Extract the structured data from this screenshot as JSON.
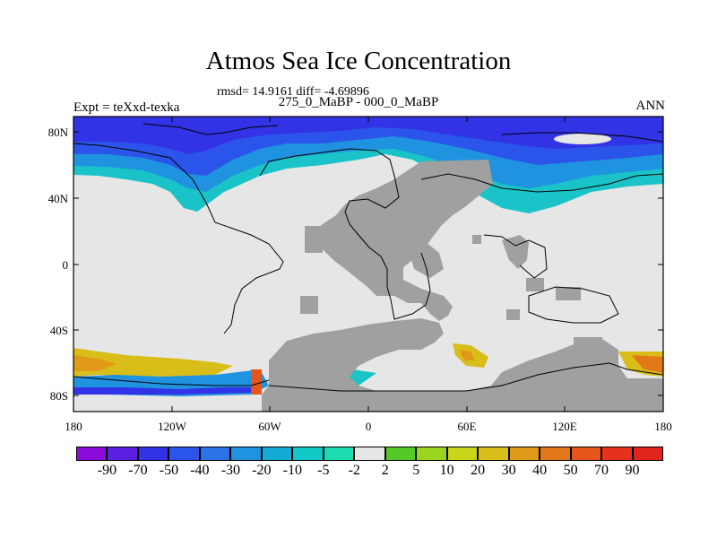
{
  "title": "Atmos Sea Ice Concentration",
  "stats": "rmsd= 14.9161 diff= -4.69896",
  "subtitle": "275_0_MaBP - 000_0_MaBP",
  "left_label": "Expt = teXxd-texka",
  "right_label": "ANN",
  "lat_ticks": [
    "80N",
    "40N",
    "0",
    "40S",
    "80S"
  ],
  "lon_ticks": [
    "180",
    "120W",
    "60W",
    "0",
    "60E",
    "120E",
    "180"
  ],
  "colorbar": {
    "labels": [
      "-90",
      "-70",
      "-50",
      "-40",
      "-30",
      "-20",
      "-10",
      "-5",
      "-2",
      "2",
      "5",
      "10",
      "20",
      "30",
      "40",
      "50",
      "70",
      "90"
    ],
    "colors": [
      "#8c0bdb",
      "#5a1fe0",
      "#3232e6",
      "#2b55ea",
      "#2a73e6",
      "#1f93e0",
      "#14acd6",
      "#10c8c5",
      "#1ddbb0",
      "#e6e6e6",
      "#55c928",
      "#9ad41e",
      "#c9d41b",
      "#d9be1a",
      "#e09a18",
      "#e3781a",
      "#e6561b",
      "#e6321c",
      "#e0231b"
    ]
  },
  "map_colors": {
    "no_change": "#e6e6e6",
    "land": "#a0a0a0"
  }
}
